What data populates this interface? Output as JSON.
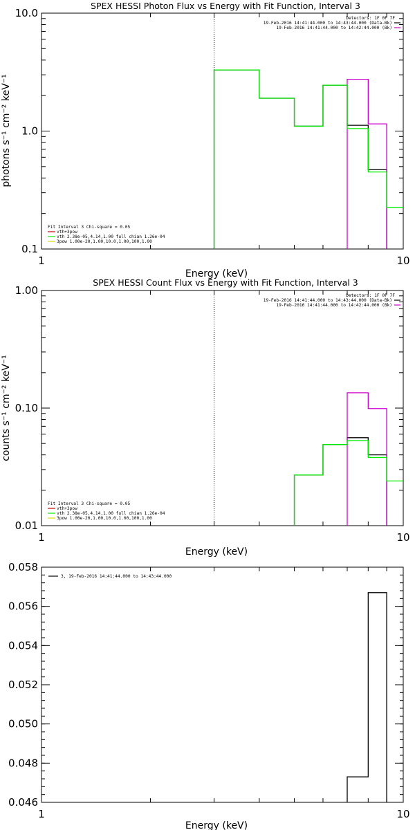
{
  "chart_data": [
    {
      "type": "line",
      "title": "SPEX HESSI Photon Flux vs Energy with Fit Function, Interval 3",
      "xlabel": "Energy (keV)",
      "ylabel": "photons s⁻¹ cm⁻² keV⁻¹",
      "xscale": "log",
      "yscale": "log",
      "xlim": [
        1,
        10
      ],
      "ylim": [
        0.1,
        10
      ],
      "xticks": [
        {
          "v": 1,
          "label": "1"
        },
        {
          "v": 10,
          "label": "10"
        }
      ],
      "yticks": [
        {
          "v": 0.1,
          "label": "0.1"
        },
        {
          "v": 1,
          "label": "1.0"
        },
        {
          "v": 10,
          "label": "10.0"
        }
      ],
      "vline": 3,
      "series": [
        {
          "name": "19-Feb-2016 14:41:44.000 to 14:43:44.000 (Data-Bk)",
          "color": "#000000",
          "steps": [
            [
              3.0,
              4.0,
              3.3
            ],
            [
              4.0,
              5.0,
              1.9
            ],
            [
              5.0,
              6.0,
              1.1
            ],
            [
              6.0,
              7.0,
              2.45
            ],
            [
              7.0,
              8.0,
              1.12
            ],
            [
              8.0,
              9.0,
              0.47
            ]
          ]
        },
        {
          "name": "19-Feb-2016 14:41:44.000 to 14:42:44.000 (Bk)",
          "color": "#cc00cc",
          "steps": [
            [
              7.0,
              8.0,
              2.75
            ],
            [
              8.0,
              9.0,
              1.15
            ]
          ]
        },
        {
          "name": "vth 2.38e-05,4.14,1.00  full chian 1.26e-04",
          "color": "#00ee00",
          "steps": [
            [
              3.0,
              4.0,
              3.3
            ],
            [
              4.0,
              5.0,
              1.9
            ],
            [
              5.0,
              6.0,
              1.1
            ],
            [
              6.0,
              7.0,
              2.45
            ],
            [
              7.0,
              8.0,
              1.05
            ],
            [
              8.0,
              9.0,
              0.45
            ],
            [
              9.0,
              10.0,
              0.225
            ]
          ]
        }
      ],
      "top_legend": {
        "header": "Detectors: 1F 0F 7F",
        "lines": [
          {
            "text": "19-Feb-2016 14:41:44.000 to 14:43:44.000 (Data-Bk)",
            "color": "#000000"
          },
          {
            "text": "19-Feb-2016 14:41:44.000 to 14:42:44.000 (Bk)",
            "color": "#cc00cc"
          }
        ]
      },
      "fit_legend": {
        "header": "Fit Interval 3   Chi-square = 0.05",
        "lines": [
          {
            "text": "vth+3pow",
            "color": "#cc0000"
          },
          {
            "text": "vth 2.38e-05,4.14,1.00  full chian 1.26e-04",
            "color": "#00ee00"
          },
          {
            "text": "3pow 1.00e-20,1.00,10.0,1.00,100,1.00",
            "color": "#dddd00"
          }
        ]
      }
    },
    {
      "type": "line",
      "title": "SPEX HESSI Count Flux vs Energy with Fit Function, Interval 3",
      "xlabel": "Energy (keV)",
      "ylabel": "counts s⁻¹ cm⁻² keV⁻¹",
      "xscale": "log",
      "yscale": "log",
      "xlim": [
        1,
        10
      ],
      "ylim": [
        0.01,
        1
      ],
      "xticks": [
        {
          "v": 1,
          "label": "1"
        },
        {
          "v": 10,
          "label": "10"
        }
      ],
      "yticks": [
        {
          "v": 0.01,
          "label": "0.01"
        },
        {
          "v": 0.1,
          "label": "0.10"
        },
        {
          "v": 1,
          "label": "1.00"
        }
      ],
      "vline": 3,
      "series": [
        {
          "name": "19-Feb-2016 14:41:44.000 to 14:43:44.000 (Data-Bk)",
          "color": "#000000",
          "steps": [
            [
              5.0,
              6.0,
              0.027
            ],
            [
              6.0,
              7.0,
              0.049
            ],
            [
              7.0,
              8.0,
              0.056
            ],
            [
              8.0,
              9.0,
              0.04
            ]
          ]
        },
        {
          "name": "19-Feb-2016 14:41:44.000 to 14:42:44.000 (Bk)",
          "color": "#cc00cc",
          "steps": [
            [
              7.0,
              8.0,
              0.135
            ],
            [
              8.0,
              9.0,
              0.099
            ]
          ]
        },
        {
          "name": "vth 2.38e-05,4.14,1.00  full chian 1.26e-04",
          "color": "#00ee00",
          "steps": [
            [
              5.0,
              6.0,
              0.027
            ],
            [
              6.0,
              7.0,
              0.049
            ],
            [
              7.0,
              8.0,
              0.053
            ],
            [
              8.0,
              9.0,
              0.038
            ],
            [
              9.0,
              10.0,
              0.024
            ]
          ]
        }
      ],
      "top_legend": {
        "header": "Detectors: 1F 0F 7F",
        "lines": [
          {
            "text": "19-Feb-2016 14:41:44.000 to 14:43:44.000 (Data-Bk)",
            "color": "#000000"
          },
          {
            "text": "19-Feb-2016 14:41:44.000 to 14:42:44.000 (Bk)",
            "color": "#cc00cc"
          }
        ]
      },
      "fit_legend": {
        "header": "Fit Interval 3   Chi-square = 0.05",
        "lines": [
          {
            "text": "vth+3pow",
            "color": "#cc0000"
          },
          {
            "text": "vth 2.38e-05,4.14,1.00  full chian 1.26e-04",
            "color": "#00ee00"
          },
          {
            "text": "3pow 1.00e-20,1.00,10.0,1.00,100,1.00",
            "color": "#dddd00"
          }
        ]
      }
    },
    {
      "type": "line",
      "title": "",
      "xlabel": "Energy (keV)",
      "ylabel": "",
      "xscale": "log",
      "yscale": "linear",
      "xlim": [
        1,
        10
      ],
      "ylim": [
        0.046,
        0.058
      ],
      "xticks": [
        {
          "v": 1,
          "label": "1"
        },
        {
          "v": 10,
          "label": "10"
        }
      ],
      "yticks": [
        {
          "v": 0.046,
          "label": "0.046"
        },
        {
          "v": 0.048,
          "label": "0.048"
        },
        {
          "v": 0.05,
          "label": "0.050"
        },
        {
          "v": 0.052,
          "label": "0.052"
        },
        {
          "v": 0.054,
          "label": "0.054"
        },
        {
          "v": 0.056,
          "label": "0.056"
        },
        {
          "v": 0.058,
          "label": "0.058"
        }
      ],
      "series": [
        {
          "name": "3, 19-Feb-2016 14:41:44.000 to 14:43:44.000",
          "color": "#000000",
          "steps": [
            [
              7.0,
              8.0,
              0.0473
            ],
            [
              8.0,
              9.0,
              0.0567
            ]
          ]
        }
      ],
      "top_legend": {
        "lines": [
          {
            "text": "3, 19-Feb-2016 14:41:44.000 to 14:43:44.000",
            "color": "#000000"
          }
        ]
      }
    }
  ]
}
